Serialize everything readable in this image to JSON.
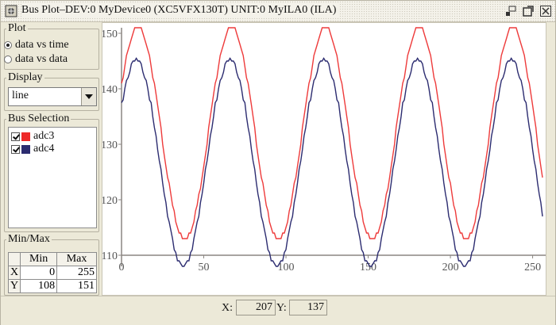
{
  "window": {
    "title": "Bus Plot–DEV:0 MyDevice0 (XC5VFX130T) UNIT:0 MyILA0 (ILA)",
    "colors": {
      "background": "#ece9d8",
      "series_red": "#ee3b3b",
      "series_navy": "#2c2c70",
      "axis": "#8b8682"
    }
  },
  "plot_group": {
    "legend": "Plot",
    "options": [
      {
        "label": "data vs time",
        "selected": true
      },
      {
        "label": "data vs data",
        "selected": false
      }
    ]
  },
  "display_group": {
    "legend": "Display",
    "value": "line"
  },
  "bus_group": {
    "legend": "Bus Selection",
    "items": [
      {
        "label": "adc3",
        "checked": true,
        "color": "#ee2a2a"
      },
      {
        "label": "adc4",
        "checked": true,
        "color": "#2c2c70"
      }
    ]
  },
  "minmax_group": {
    "legend": "Min/Max",
    "headers": [
      "Min",
      "Max"
    ],
    "rows": [
      {
        "axis": "X",
        "min": "0",
        "max": "255"
      },
      {
        "axis": "Y",
        "min": "108",
        "max": "151"
      }
    ]
  },
  "status": {
    "x_label": "X:",
    "x_value": "207",
    "y_label": "Y:",
    "y_value": "137"
  },
  "chart_data": {
    "type": "line",
    "xlim": [
      0,
      256
    ],
    "ylim": [
      108,
      151
    ],
    "x_ticks": [
      0,
      50,
      100,
      150,
      200,
      250
    ],
    "y_ticks": [
      110,
      120,
      130,
      140,
      150
    ],
    "grid": false,
    "period": 57,
    "series": [
      {
        "name": "adc3",
        "color": "#ee3b3b",
        "min": 113,
        "max": 151,
        "peaks_x": [
          10,
          67,
          124,
          181,
          238
        ]
      },
      {
        "name": "adc4",
        "color": "#2c2c70",
        "min": 108,
        "max": 145,
        "peaks_x": [
          9,
          66,
          123,
          180,
          237
        ]
      }
    ]
  }
}
